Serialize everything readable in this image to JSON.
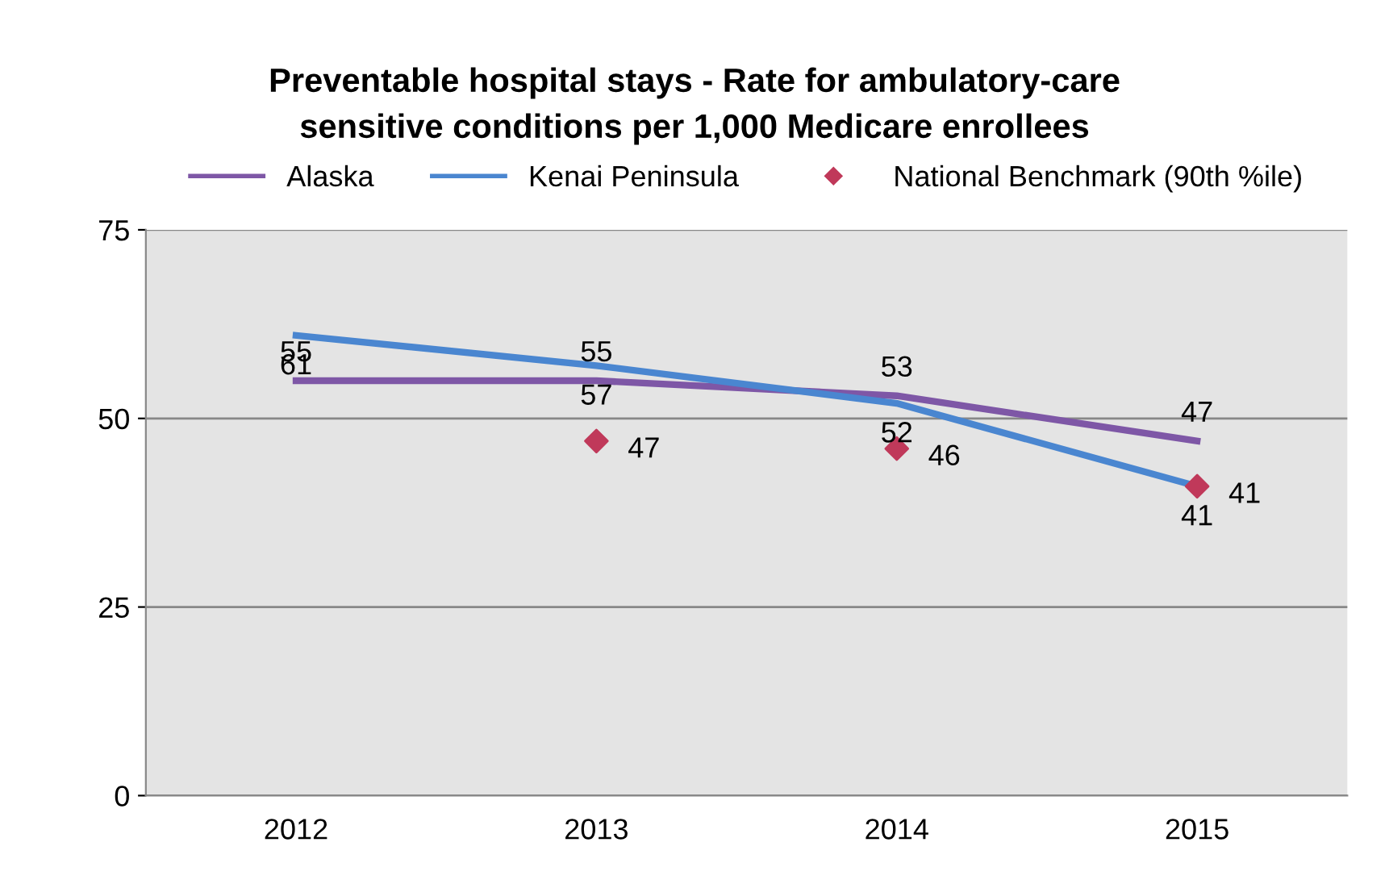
{
  "chart_data": {
    "type": "line",
    "title": "Preventable hospital stays - Rate for ambulatory-care\nsensitive conditions per 1,000 Medicare enrollees",
    "categories": [
      "2012",
      "2013",
      "2014",
      "2015"
    ],
    "series": [
      {
        "name": "Alaska",
        "color": "#7e57a6",
        "values": [
          55,
          55,
          53,
          47
        ]
      },
      {
        "name": "Kenai Peninsula",
        "color": "#4a86d0",
        "values": [
          61,
          57,
          52,
          41
        ]
      },
      {
        "name": "National Benchmark (90th %ile)",
        "type": "scatter",
        "marker": "diamond",
        "color": "#c0395a",
        "values": [
          null,
          47,
          46,
          41
        ]
      }
    ],
    "ylim": [
      0,
      75
    ],
    "yticks": [
      0,
      25,
      50,
      75
    ],
    "grid": "y",
    "legend": "top",
    "data_labels": true
  }
}
